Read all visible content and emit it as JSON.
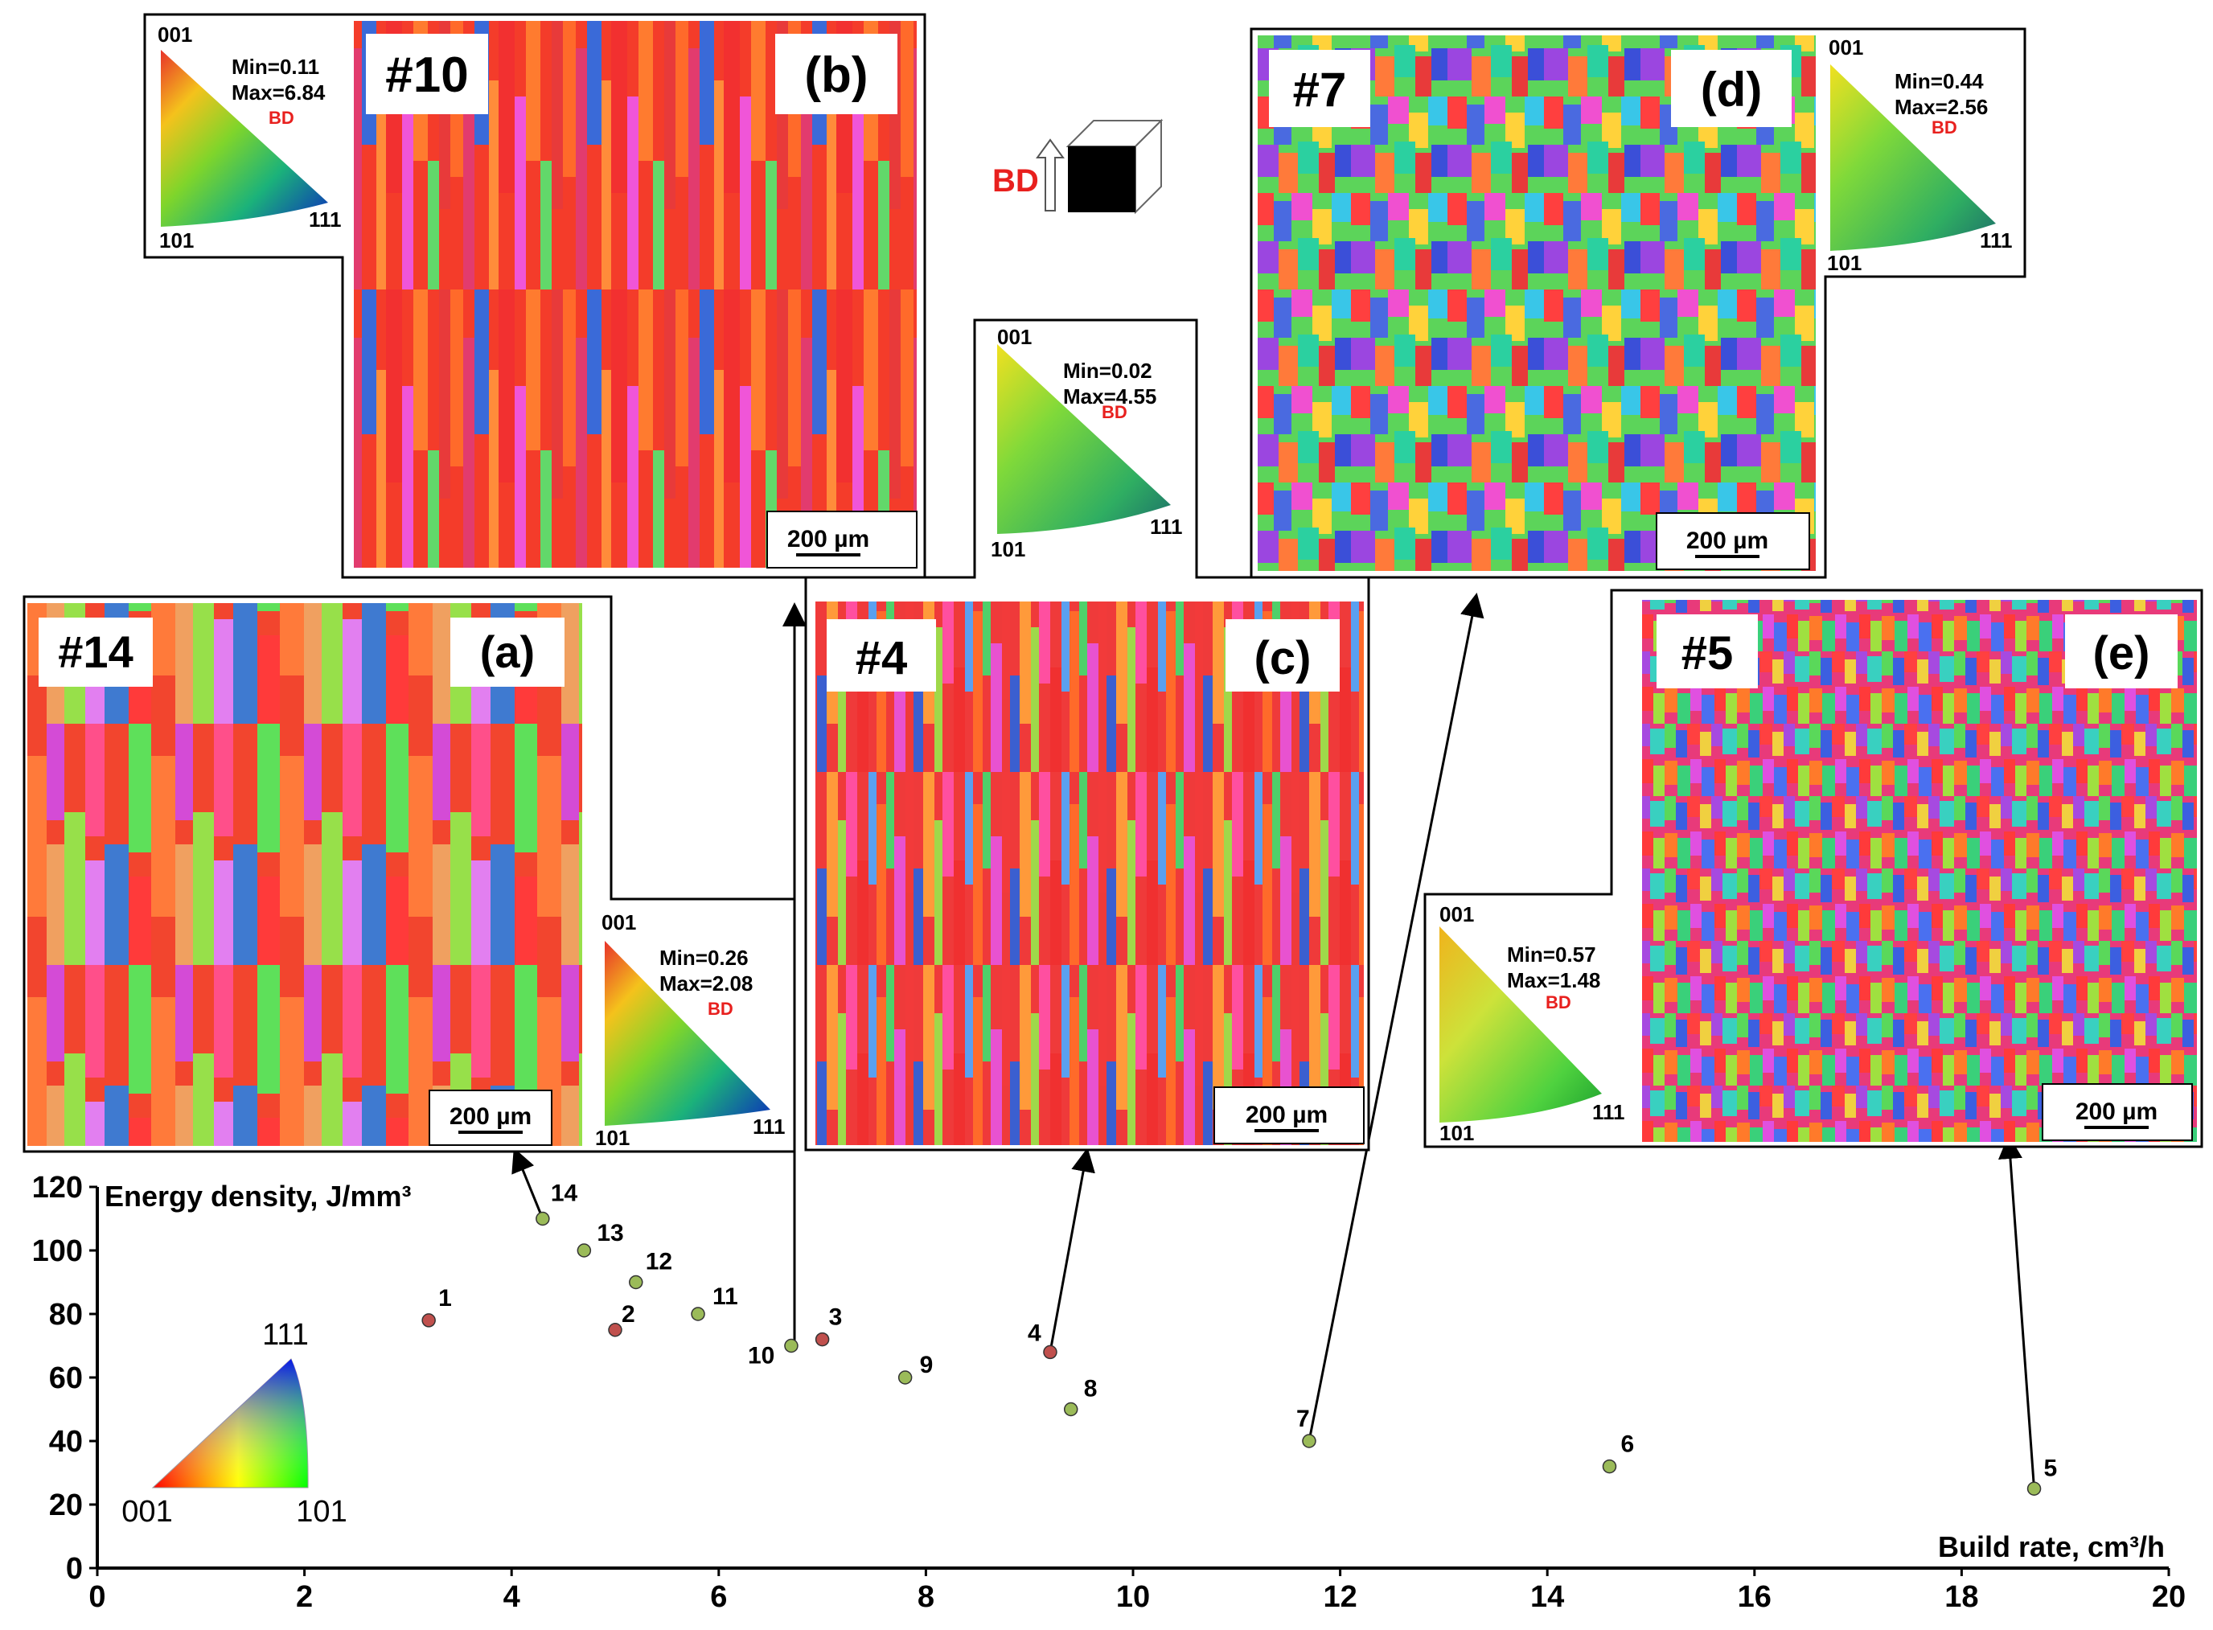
{
  "chart_data": {
    "type": "scatter",
    "xlabel": "Build rate, cm³/h",
    "ylabel": "Energy density, J/mm³",
    "xlim": [
      0,
      20
    ],
    "ylim": [
      0,
      120
    ],
    "xticks": [
      0,
      2,
      4,
      6,
      8,
      10,
      12,
      14,
      16,
      18,
      20
    ],
    "yticks": [
      0,
      20,
      40,
      60,
      80,
      100,
      120
    ],
    "grid": false,
    "points": [
      {
        "label": "1",
        "x": 3.2,
        "y": 78,
        "color": "#c0504d"
      },
      {
        "label": "2",
        "x": 5.0,
        "y": 75,
        "color": "#c0504d"
      },
      {
        "label": "3",
        "x": 7.0,
        "y": 72,
        "color": "#c0504d"
      },
      {
        "label": "4",
        "x": 9.2,
        "y": 68,
        "color": "#c0504d"
      },
      {
        "label": "5",
        "x": 18.7,
        "y": 25,
        "color": "#9bbb59"
      },
      {
        "label": "6",
        "x": 14.6,
        "y": 32,
        "color": "#9bbb59"
      },
      {
        "label": "7",
        "x": 11.7,
        "y": 40,
        "color": "#9bbb59"
      },
      {
        "label": "8",
        "x": 9.4,
        "y": 50,
        "color": "#9bbb59"
      },
      {
        "label": "9",
        "x": 7.8,
        "y": 60,
        "color": "#9bbb59"
      },
      {
        "label": "10",
        "x": 6.7,
        "y": 70,
        "color": "#9bbb59"
      },
      {
        "label": "11",
        "x": 5.8,
        "y": 80,
        "color": "#9bbb59"
      },
      {
        "label": "12",
        "x": 5.2,
        "y": 90,
        "color": "#9bbb59"
      },
      {
        "label": "13",
        "x": 4.7,
        "y": 100,
        "color": "#9bbb59"
      },
      {
        "label": "14",
        "x": 4.3,
        "y": 110,
        "color": "#9bbb59"
      }
    ]
  },
  "ipf_legend": {
    "c001": "001",
    "c101": "101",
    "c111": "111"
  },
  "build_direction": {
    "label": "BD"
  },
  "insets": [
    {
      "id": "a",
      "sample": "#14",
      "tag": "(a)",
      "scale": "200 µm",
      "pf": {
        "c001": "001",
        "c101": "101",
        "c111": "111",
        "min": "Min=0.26",
        "max": "Max=2.08",
        "bd": "BD"
      }
    },
    {
      "id": "b",
      "sample": "#10",
      "tag": "(b)",
      "scale": "200 µm",
      "pf": {
        "c001": "001",
        "c101": "101",
        "c111": "111",
        "min": "Min=0.11",
        "max": "Max=6.84",
        "bd": "BD"
      }
    },
    {
      "id": "c",
      "sample": "#4",
      "tag": "(c)",
      "scale": "200 µm",
      "pf": {
        "c001": "001",
        "c101": "101",
        "c111": "111",
        "min": "Min=0.02",
        "max": "Max=4.55",
        "bd": "BD"
      }
    },
    {
      "id": "d",
      "sample": "#7",
      "tag": "(d)",
      "scale": "200 µm",
      "pf": {
        "c001": "001",
        "c101": "101",
        "c111": "111",
        "min": "Min=0.44",
        "max": "Max=2.56",
        "bd": "BD"
      }
    },
    {
      "id": "e",
      "sample": "#5",
      "tag": "(e)",
      "scale": "200 µm",
      "pf": {
        "c001": "001",
        "c101": "101",
        "c111": "111",
        "min": "Min=0.57",
        "max": "Max=1.48",
        "bd": "BD"
      }
    }
  ]
}
